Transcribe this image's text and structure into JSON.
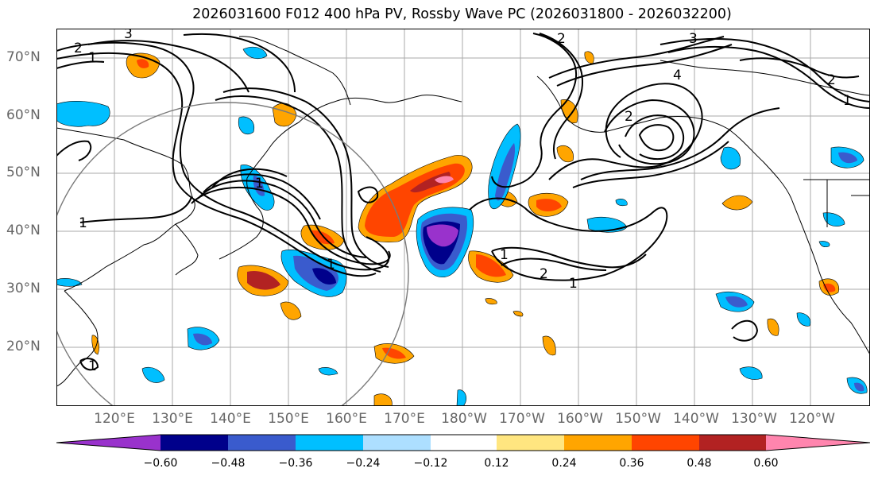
{
  "title": "2026031600 F012 400 hPa PV, Rossby Wave PC (2026031800 - 2026032200)",
  "lat_labels": [
    "70°N",
    "60°N",
    "50°N",
    "40°N",
    "30°N",
    "20°N"
  ],
  "lon_labels": [
    "120°E",
    "130°E",
    "140°E",
    "150°E",
    "160°E",
    "170°E",
    "180°W",
    "170°W",
    "160°W",
    "150°W",
    "140°W",
    "130°W",
    "120°W"
  ],
  "colorbar": {
    "ticks": [
      "−0.60",
      "−0.48",
      "−0.36",
      "−0.24",
      "−0.12",
      "0.12",
      "0.24",
      "0.36",
      "0.48",
      "0.60"
    ],
    "colors": [
      "#9932CC",
      "#00008B",
      "#3A5BCD",
      "#00BFFF",
      "#ADDFFF",
      "#FFFFFF",
      "#FFE680",
      "#FFA500",
      "#FF4500",
      "#B22222",
      "#FF85AE"
    ]
  },
  "contour_labels": [
    "3",
    "2",
    "1",
    "2",
    "3",
    "4",
    "2",
    "1",
    "1",
    "1",
    "1",
    "2",
    "2",
    "1",
    "1",
    "1"
  ]
}
